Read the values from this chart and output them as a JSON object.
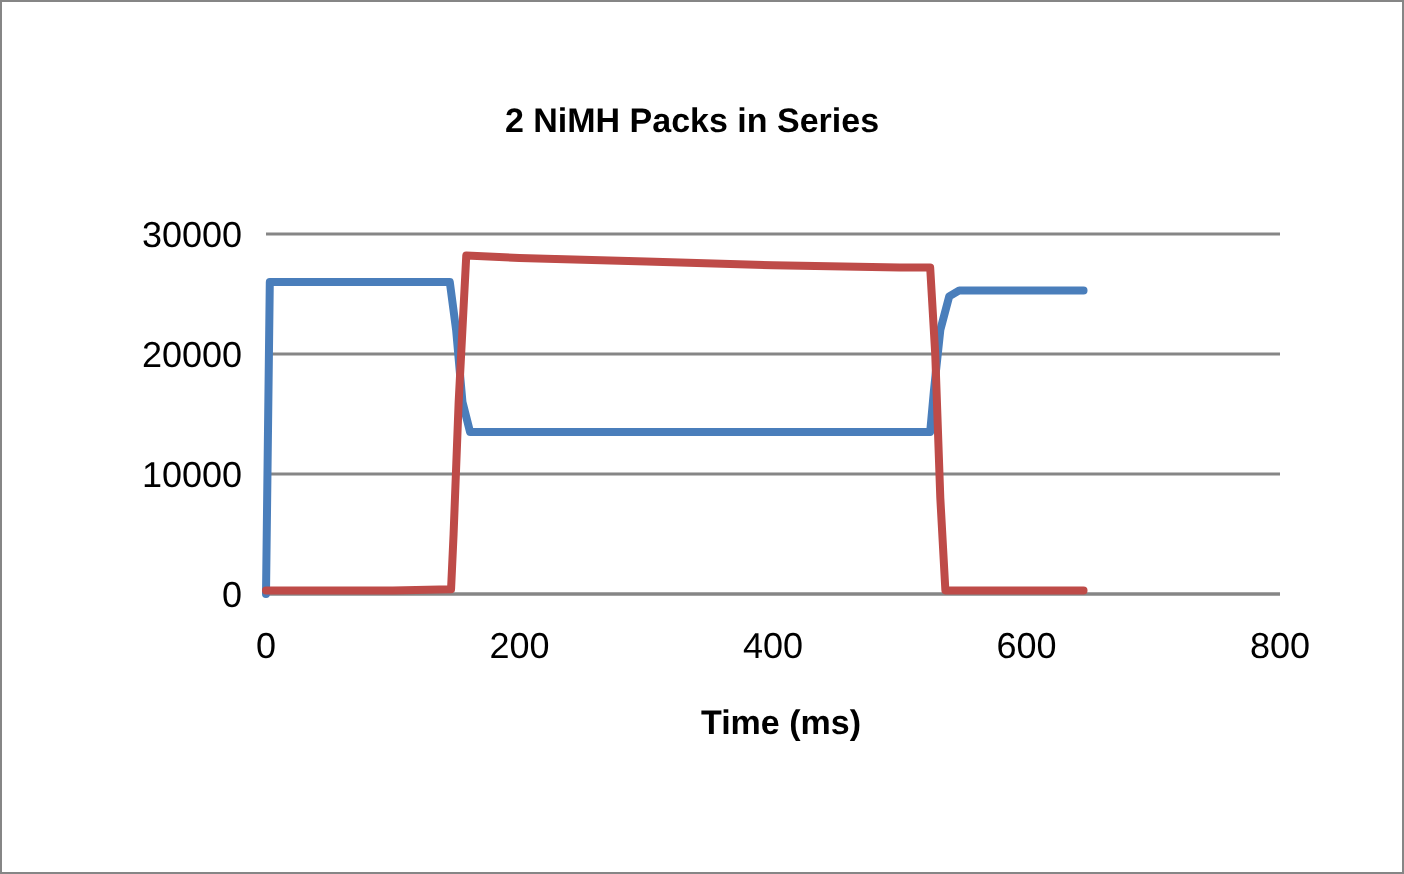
{
  "chart_data": {
    "type": "line",
    "title": "2 NiMH Packs in Series",
    "xlabel": "Time (ms)",
    "xlim": [
      0,
      800
    ],
    "xticks": [
      0,
      200,
      400,
      600,
      800
    ],
    "ylim": [
      0,
      30000
    ],
    "yticks": [
      0,
      10000,
      20000,
      30000
    ],
    "grid": "y",
    "legend": false,
    "marker": "none",
    "line_style": "solid",
    "series": [
      {
        "color": "#4a7ebb",
        "x": [
          0,
          3,
          10,
          100,
          145,
          150,
          155,
          161,
          200,
          300,
          400,
          500,
          524,
          527,
          532,
          539,
          547,
          600,
          645
        ],
        "values": [
          0,
          26000,
          26000,
          26000,
          26000,
          22000,
          16000,
          13500,
          13500,
          13500,
          13500,
          13500,
          13500,
          17000,
          22000,
          24800,
          25300,
          25300,
          25300
        ]
      },
      {
        "color": "#be4b48",
        "x": [
          0,
          50,
          100,
          146,
          148,
          152,
          158,
          200,
          300,
          400,
          500,
          524,
          528,
          532,
          536,
          580,
          645
        ],
        "values": [
          300,
          300,
          300,
          400,
          5000,
          16000,
          28200,
          28000,
          27700,
          27400,
          27200,
          27200,
          20000,
          8000,
          300,
          300,
          300
        ]
      }
    ]
  }
}
